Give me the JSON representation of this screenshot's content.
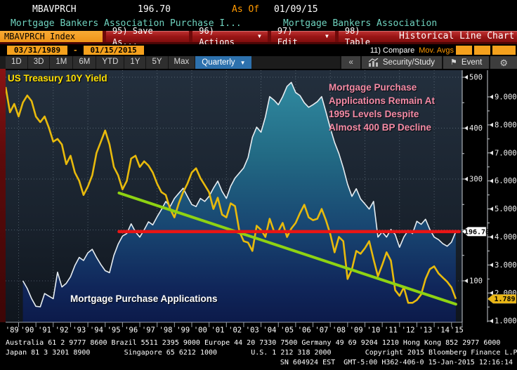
{
  "header": {
    "ticker": "MBAVPRCH",
    "last_value": "196.70",
    "as_of_label": "As Of",
    "as_of_date": "01/09/15",
    "description_left": "Mortgage Bankers Association Purchase I...",
    "description_right": "Mortgage Bankers Association"
  },
  "toolbar": {
    "ticker_tab": "MBAVPRCH Index",
    "save_as_label": "95) Save As...",
    "actions_label": "96) Actions",
    "edit_label": "97) Edit",
    "table_label": "98) Table",
    "chart_type_label": "Historical Line Chart"
  },
  "range_bar": {
    "start_date": "03/31/1989",
    "separator": "-",
    "end_date": "01/15/2015",
    "compare_label": "11) Compare",
    "mov_avgs_label": "Mov. Avgs"
  },
  "period_bar": {
    "tabs": [
      "1D",
      "3D",
      "1M",
      "6M",
      "YTD",
      "1Y",
      "5Y",
      "Max"
    ],
    "frequency": "Quarterly",
    "security_study_label": "Security/Study",
    "event_label": "Event"
  },
  "icons": {
    "dropdown_arrow": "▼",
    "collapse": "«",
    "event_flag": "⚑",
    "gear": "⚙"
  },
  "chart_data": {
    "type": "line",
    "title": "MBAVPRCH Index — Historical Line Chart, Quarterly, 03/31/1989 - 01/15/2015",
    "annotations": {
      "yield_label": "US Treasury 10Y Yield",
      "purchase_label": "Mortgage Purchase Applications",
      "callout_lines": [
        "Mortgage Purchase",
        "Applications Remain At",
        "1995 Levels Despite",
        "Almost 400 BP Decline"
      ]
    },
    "x_axis": {
      "start": 1989.25,
      "end": 2015.25,
      "year_labels": [
        "'89",
        "'90",
        "'91",
        "'92",
        "'93",
        "'94",
        "'95",
        "'96",
        "'97",
        "'98",
        "'99",
        "'00",
        "'01",
        "'02",
        "'03",
        "'04",
        "'05",
        "'06",
        "'07",
        "'08",
        "'09",
        "'10",
        "'11",
        "'12",
        "'13",
        "'14",
        "'15"
      ]
    },
    "index_axis": {
      "name": "Mortgage purchase applications index (inner right axis)",
      "major_ticks": [
        100,
        200,
        300,
        400,
        500
      ],
      "labeled_ticks": [
        500,
        400,
        300,
        100
      ],
      "current_value": 196.7,
      "current_label": "196.70",
      "tag_bg": "#ffffff"
    },
    "yield_axis": {
      "name": "US Treasury 10Y yield % (outer right axis)",
      "major_ticks": [
        1,
        2,
        3,
        4,
        5,
        6,
        7,
        8,
        9
      ],
      "tick_labels": [
        "1.000",
        "2.000",
        "3.000",
        "4.000",
        "5.000",
        "6.000",
        "7.000",
        "8.000",
        "9.000"
      ],
      "current_value": 1.789,
      "current_label": "1.789",
      "tag_bg": "#e9b616"
    },
    "series": [
      {
        "name": "Mortgage Purchase Applications (MBAVPRCH Index)",
        "axis": "index",
        "style": "area",
        "edge_color": "#e6edf2",
        "fill_top": "#318ca2",
        "fill_bottom": "#0c1a4a",
        "start": 1990.25,
        "step": 0.25,
        "values": [
          100,
          85,
          65,
          50,
          49,
          75,
          70,
          65,
          117,
          88,
          95,
          108,
          130,
          146,
          140,
          155,
          162,
          146,
          132,
          120,
          116,
          150,
          172,
          188,
          193,
          212,
          196,
          186,
          200,
          216,
          210,
          226,
          240,
          256,
          246,
          262,
          272,
          282,
          266,
          250,
          246,
          262,
          256,
          266,
          282,
          296,
          276,
          262,
          286,
          302,
          312,
          322,
          342,
          382,
          402,
          392,
          422,
          462,
          455,
          446,
          462,
          482,
          490,
          470,
          464,
          450,
          441,
          446,
          452,
          462,
          432,
          400,
          372,
          350,
          322,
          290,
          266,
          281,
          261,
          251,
          241,
          256,
          186,
          196,
          186,
          201,
          191,
          166,
          186,
          199,
          193,
          217,
          211,
          221,
          201,
          186,
          181,
          173,
          168,
          176,
          196.7
        ]
      },
      {
        "name": "US Treasury 10Y Yield",
        "axis": "yield",
        "style": "line",
        "color": "#e8ba0c",
        "start": 1989.25,
        "step": 0.25,
        "values": [
          9.35,
          8.45,
          8.75,
          8.3,
          8.8,
          9.05,
          8.85,
          8.3,
          8.1,
          8.3,
          7.9,
          7.4,
          7.5,
          7.3,
          6.6,
          6.9,
          6.3,
          6.0,
          5.5,
          5.8,
          6.2,
          7.0,
          7.4,
          7.8,
          7.3,
          6.5,
          6.2,
          5.7,
          6.0,
          6.8,
          6.9,
          6.5,
          6.7,
          6.55,
          6.3,
          5.9,
          5.6,
          5.5,
          5.0,
          4.7,
          5.2,
          5.6,
          5.9,
          6.3,
          6.45,
          6.1,
          5.85,
          5.6,
          5.0,
          5.4,
          4.8,
          4.7,
          5.2,
          5.1,
          4.2,
          3.85,
          3.8,
          3.5,
          4.4,
          4.25,
          4.0,
          4.65,
          4.2,
          4.2,
          4.5,
          4.0,
          4.3,
          4.5,
          4.85,
          5.15,
          4.7,
          4.6,
          4.65,
          5.0,
          4.6,
          4.1,
          3.45,
          4.0,
          3.85,
          2.5,
          2.85,
          3.5,
          3.4,
          3.6,
          3.85,
          3.2,
          2.6,
          3.0,
          3.45,
          3.15,
          2.1,
          1.9,
          2.2,
          1.65,
          1.65,
          1.75,
          1.95,
          2.5,
          2.85,
          2.95,
          2.7,
          2.55,
          2.4,
          2.2,
          1.789
        ]
      }
    ],
    "overlays": [
      {
        "name": "yield-downtrend-line",
        "color": "#8ed312",
        "axis": "yield",
        "x1": 1995.8,
        "v1": 5.57,
        "x2": 2015.25,
        "v2": 1.6,
        "width": 4
      },
      {
        "name": "level-line-1995",
        "color": "#ea1515",
        "axis": "index",
        "x1": 1995.8,
        "v1": 196.7,
        "x2": 2015.45,
        "v2": 196.7,
        "width": 4.5
      }
    ],
    "grid": "dotted"
  },
  "footer": {
    "line1": "Australia 61 2 9777 8600 Brazil 5511 2395 9000 Europe 44 20 7330 7500 Germany 49 69 9204 1210 Hong Kong 852 2977 6000",
    "line2": "Japan 81 3 3201 8900        Singapore 65 6212 1000        U.S. 1 212 318 2000        Copyright 2015 Bloomberg Finance L.P.",
    "line3": "SN 604924 EST  GMT-5:00 H362-406-0 15-Jan-2015 12:16:14"
  }
}
